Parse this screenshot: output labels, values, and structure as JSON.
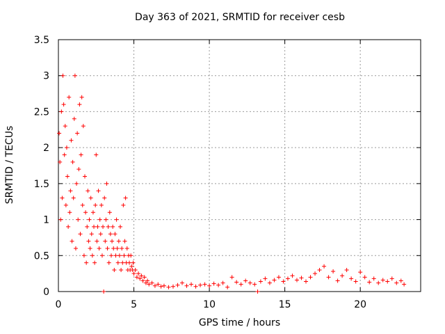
{
  "chart_data": {
    "type": "scatter",
    "title": "Day 363 of 2021, SRMTID for receiver cesb",
    "xlabel": "GPS time / hours",
    "ylabel": "SRMTID / TECUs",
    "xlim": [
      0,
      24
    ],
    "ylim": [
      0,
      3.5
    ],
    "xticks": [
      0,
      5,
      10,
      15,
      20
    ],
    "yticks": [
      0,
      0.5,
      1,
      1.5,
      2,
      2.5,
      3,
      3.5
    ],
    "ytick_labels": [
      "0",
      "0.5",
      "1",
      "1.5",
      "2",
      "2.5",
      "3",
      "3.5"
    ],
    "grid": true,
    "marker": "+",
    "series": [
      {
        "name": "SRMTID",
        "color": "#ff0000",
        "points": [
          [
            0.05,
            2.2
          ],
          [
            0.1,
            1.8
          ],
          [
            0.15,
            1.0
          ],
          [
            0.2,
            2.5
          ],
          [
            0.25,
            1.3
          ],
          [
            0.3,
            3.0
          ],
          [
            0.35,
            2.6
          ],
          [
            0.4,
            1.9
          ],
          [
            0.45,
            2.3
          ],
          [
            0.5,
            1.2
          ],
          [
            0.55,
            2.0
          ],
          [
            0.6,
            1.6
          ],
          [
            0.65,
            0.9
          ],
          [
            0.7,
            2.7
          ],
          [
            0.75,
            1.1
          ],
          [
            0.8,
            1.4
          ],
          [
            0.85,
            2.1
          ],
          [
            0.9,
            0.7
          ],
          [
            0.95,
            1.8
          ],
          [
            1.0,
            1.3
          ],
          [
            1.05,
            2.4
          ],
          [
            1.1,
            3.0
          ],
          [
            1.15,
            0.6
          ],
          [
            1.2,
            1.5
          ],
          [
            1.25,
            2.2
          ],
          [
            1.3,
            1.0
          ],
          [
            1.35,
            1.7
          ],
          [
            1.4,
            2.6
          ],
          [
            1.45,
            0.8
          ],
          [
            1.5,
            1.9
          ],
          [
            1.55,
            2.7
          ],
          [
            1.6,
            1.2
          ],
          [
            1.65,
            2.3
          ],
          [
            1.7,
            0.5
          ],
          [
            1.75,
            1.6
          ],
          [
            1.8,
            1.1
          ],
          [
            1.85,
            0.4
          ],
          [
            1.9,
            0.9
          ],
          [
            1.95,
            1.4
          ],
          [
            2.0,
            0.7
          ],
          [
            2.05,
            1.0
          ],
          [
            2.1,
            0.6
          ],
          [
            2.15,
            1.3
          ],
          [
            2.2,
            0.8
          ],
          [
            2.25,
            0.5
          ],
          [
            2.3,
            1.1
          ],
          [
            2.35,
            0.9
          ],
          [
            2.4,
            0.4
          ],
          [
            2.45,
            1.2
          ],
          [
            2.5,
            1.9
          ],
          [
            2.55,
            0.7
          ],
          [
            2.6,
            0.9
          ],
          [
            2.65,
            1.4
          ],
          [
            2.7,
            0.6
          ],
          [
            2.75,
            1.0
          ],
          [
            2.8,
            0.8
          ],
          [
            2.85,
            1.2
          ],
          [
            2.9,
            0.5
          ],
          [
            2.95,
            0.9
          ],
          [
            3.0,
            0.0
          ],
          [
            3.05,
            1.3
          ],
          [
            3.1,
            0.7
          ],
          [
            3.15,
            1.0
          ],
          [
            3.2,
            1.5
          ],
          [
            3.25,
            0.6
          ],
          [
            3.3,
            0.9
          ],
          [
            3.35,
            0.4
          ],
          [
            3.4,
            1.1
          ],
          [
            3.45,
            0.8
          ],
          [
            3.5,
            0.5
          ],
          [
            3.55,
            0.7
          ],
          [
            3.6,
            0.9
          ],
          [
            3.65,
            0.6
          ],
          [
            3.7,
            0.3
          ],
          [
            3.75,
            0.8
          ],
          [
            3.8,
            0.5
          ],
          [
            3.85,
            1.0
          ],
          [
            3.9,
            0.6
          ],
          [
            3.95,
            0.4
          ],
          [
            4.0,
            0.7
          ],
          [
            4.05,
            0.5
          ],
          [
            4.1,
            0.9
          ],
          [
            4.15,
            0.3
          ],
          [
            4.2,
            0.6
          ],
          [
            4.25,
            0.4
          ],
          [
            4.3,
            1.2
          ],
          [
            4.35,
            0.5
          ],
          [
            4.4,
            0.7
          ],
          [
            4.45,
            1.3
          ],
          [
            4.5,
            0.4
          ],
          [
            4.55,
            0.6
          ],
          [
            4.6,
            0.3
          ],
          [
            4.65,
            0.5
          ],
          [
            4.7,
            0.4
          ],
          [
            4.75,
            0.3
          ],
          [
            4.8,
            0.5
          ],
          [
            4.85,
            0.35
          ],
          [
            4.9,
            0.3
          ],
          [
            4.95,
            0.4
          ],
          [
            5.0,
            0.25
          ],
          [
            5.1,
            0.3
          ],
          [
            5.2,
            0.2
          ],
          [
            5.3,
            0.25
          ],
          [
            5.4,
            0.18
          ],
          [
            5.5,
            0.22
          ],
          [
            5.6,
            0.15
          ],
          [
            5.7,
            0.2
          ],
          [
            5.8,
            0.12
          ],
          [
            5.9,
            0.15
          ],
          [
            6.0,
            0.1
          ],
          [
            6.2,
            0.12
          ],
          [
            6.4,
            0.08
          ],
          [
            6.6,
            0.1
          ],
          [
            6.8,
            0.07
          ],
          [
            7.0,
            0.08
          ],
          [
            7.3,
            0.06
          ],
          [
            7.6,
            0.07
          ],
          [
            7.9,
            0.09
          ],
          [
            8.2,
            0.12
          ],
          [
            8.5,
            0.08
          ],
          [
            8.8,
            0.1
          ],
          [
            9.1,
            0.07
          ],
          [
            9.4,
            0.09
          ],
          [
            9.7,
            0.1
          ],
          [
            10.0,
            0.08
          ],
          [
            10.3,
            0.11
          ],
          [
            10.6,
            0.09
          ],
          [
            10.9,
            0.12
          ],
          [
            11.2,
            0.06
          ],
          [
            11.5,
            0.2
          ],
          [
            11.8,
            0.13
          ],
          [
            12.1,
            0.1
          ],
          [
            12.4,
            0.15
          ],
          [
            12.7,
            0.12
          ],
          [
            13.0,
            0.1
          ],
          [
            13.2,
            0.0
          ],
          [
            13.4,
            0.14
          ],
          [
            13.7,
            0.18
          ],
          [
            14.0,
            0.12
          ],
          [
            14.3,
            0.16
          ],
          [
            14.6,
            0.2
          ],
          [
            14.9,
            0.14
          ],
          [
            15.2,
            0.18
          ],
          [
            15.5,
            0.22
          ],
          [
            15.8,
            0.16
          ],
          [
            16.1,
            0.19
          ],
          [
            16.4,
            0.14
          ],
          [
            16.7,
            0.2
          ],
          [
            17.0,
            0.25
          ],
          [
            17.3,
            0.3
          ],
          [
            17.6,
            0.35
          ],
          [
            17.9,
            0.2
          ],
          [
            18.2,
            0.28
          ],
          [
            18.5,
            0.15
          ],
          [
            18.8,
            0.22
          ],
          [
            19.1,
            0.3
          ],
          [
            19.4,
            0.18
          ],
          [
            19.7,
            0.14
          ],
          [
            20.0,
            0.27
          ],
          [
            20.3,
            0.2
          ],
          [
            20.6,
            0.13
          ],
          [
            20.9,
            0.18
          ],
          [
            21.2,
            0.12
          ],
          [
            21.5,
            0.16
          ],
          [
            21.8,
            0.14
          ],
          [
            22.1,
            0.18
          ],
          [
            22.4,
            0.12
          ],
          [
            22.7,
            0.15
          ],
          [
            22.9,
            0.1
          ]
        ]
      }
    ]
  }
}
